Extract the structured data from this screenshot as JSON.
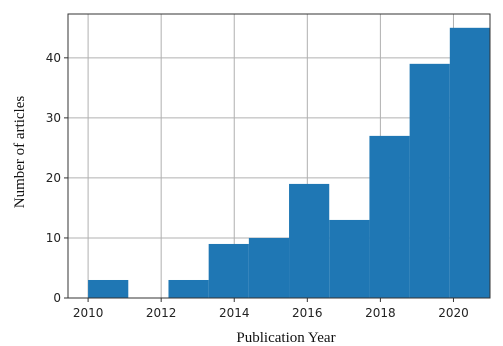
{
  "chart_data": {
    "type": "bar",
    "subtype": "histogram",
    "title": "",
    "xlabel": "Publication Year",
    "ylabel": "Number of articles",
    "bins": [
      {
        "start": 2010.0,
        "end": 2011.1,
        "value": 3
      },
      {
        "start": 2011.1,
        "end": 2012.2,
        "value": 0
      },
      {
        "start": 2012.2,
        "end": 2013.3,
        "value": 3
      },
      {
        "start": 2013.3,
        "end": 2014.4,
        "value": 9
      },
      {
        "start": 2014.4,
        "end": 2015.5,
        "value": 10
      },
      {
        "start": 2015.5,
        "end": 2016.6,
        "value": 19
      },
      {
        "start": 2016.6,
        "end": 2017.7,
        "value": 13
      },
      {
        "start": 2017.7,
        "end": 2018.8,
        "value": 27
      },
      {
        "start": 2018.8,
        "end": 2019.9,
        "value": 39
      },
      {
        "start": 2019.9,
        "end": 2021.0,
        "value": 45
      }
    ],
    "xlim": [
      2009.45,
      2021.0
    ],
    "ylim": [
      0,
      47.3
    ],
    "xticks": [
      "2010",
      "2012",
      "2014",
      "2016",
      "2018",
      "2020"
    ],
    "xtick_values": [
      2010,
      2012,
      2014,
      2016,
      2018,
      2020
    ],
    "yticks": [
      "0",
      "10",
      "20",
      "30",
      "40"
    ],
    "ytick_values": [
      0,
      10,
      20,
      30,
      40
    ],
    "grid": true,
    "bar_color": "#1f77b4",
    "grid_color": "#b0b0b0"
  }
}
